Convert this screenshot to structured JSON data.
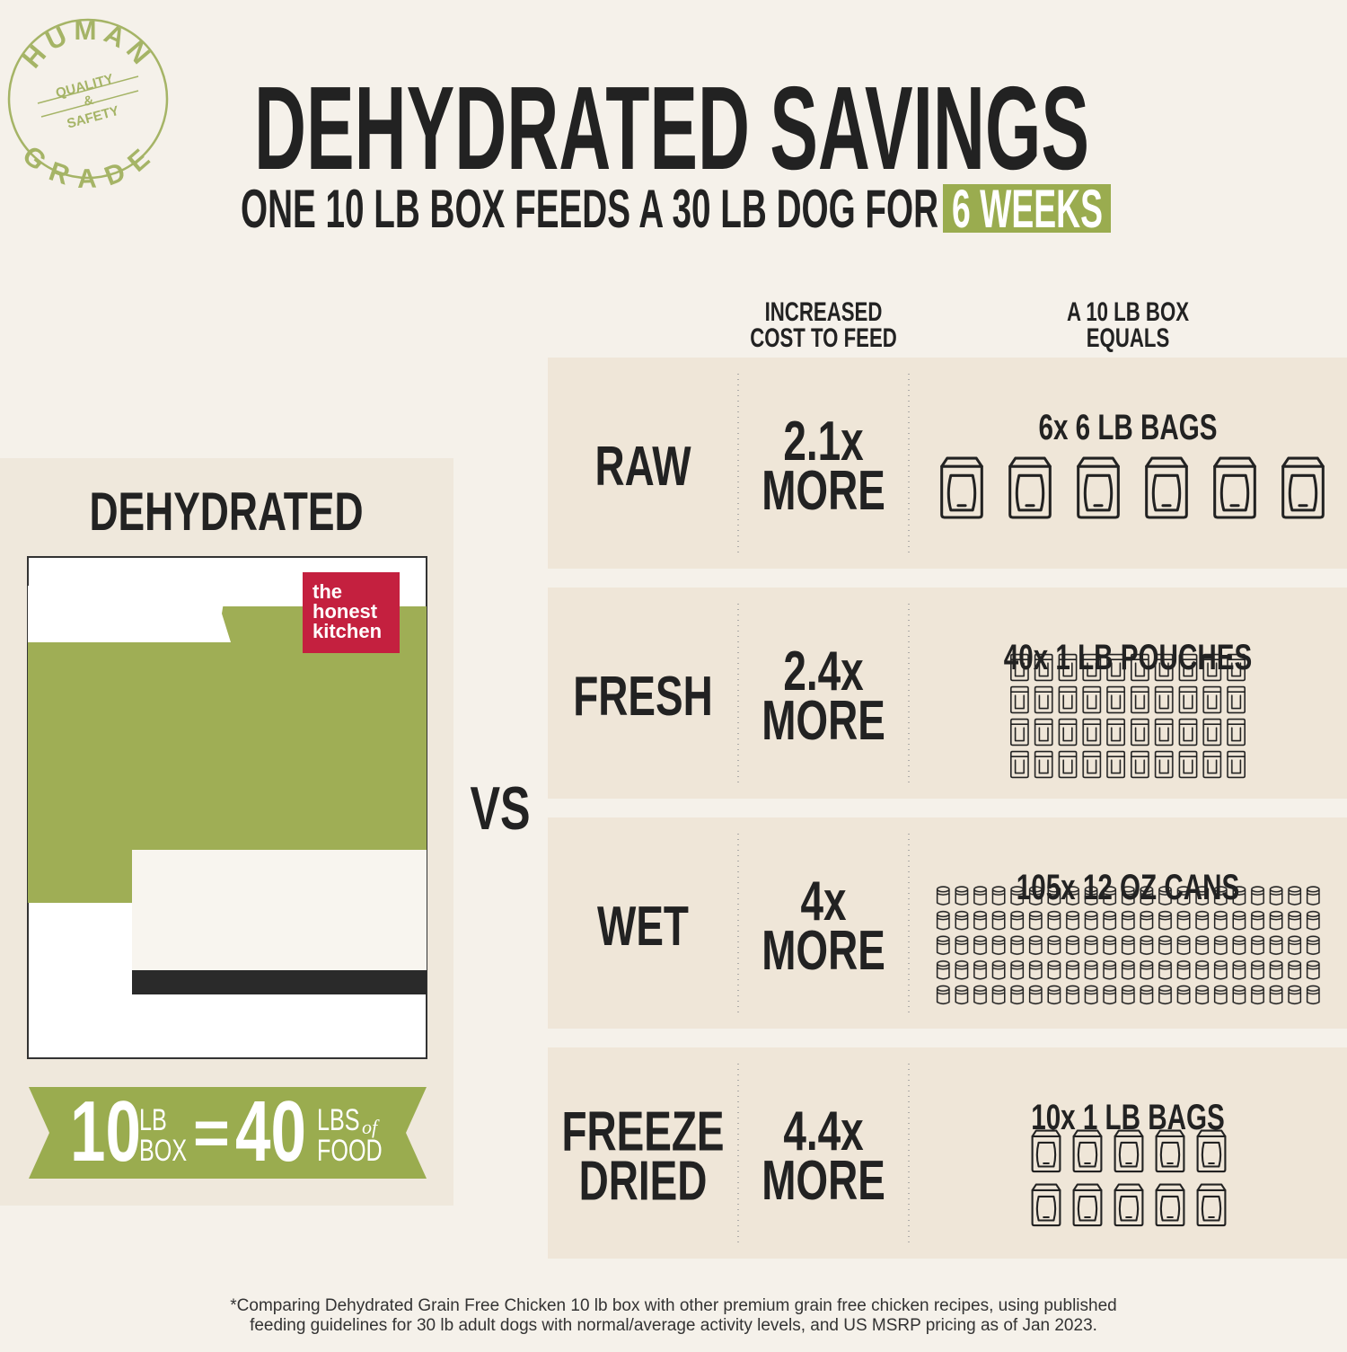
{
  "badge": {
    "top": "HUMAN",
    "lines": [
      "QUALITY",
      "&",
      "SAFETY"
    ],
    "bottom": "GRADE"
  },
  "header": {
    "title": "DEHYDRATED SAVINGS",
    "subtitle": "ONE 10 LB BOX FEEDS A 30 LB DOG FOR",
    "highlight": "6 WEEKS"
  },
  "columns": {
    "cost": [
      "INCREASED",
      "COST TO FEED"
    ],
    "equals": [
      "A 10 LB BOX",
      "EQUALS"
    ]
  },
  "dehydrated": {
    "label": "DEHYDRATED",
    "brand": [
      "the",
      "honest",
      "kitchen"
    ],
    "ribbon": {
      "box_weight": "10",
      "box_unit": [
        "LB",
        "BOX"
      ],
      "equals": "=",
      "food_weight": "40",
      "food_unit": [
        "LBS",
        "of",
        "FOOD"
      ]
    }
  },
  "vs": "VS",
  "rows": [
    {
      "label": [
        "RAW"
      ],
      "cost": [
        "2.1x",
        "MORE"
      ],
      "equals": "6x 6 LB BAGS"
    },
    {
      "label": [
        "FRESH"
      ],
      "cost": [
        "2.4x",
        "MORE"
      ],
      "equals": "40x 1 LB POUCHES"
    },
    {
      "label": [
        "WET"
      ],
      "cost": [
        "4x",
        "MORE"
      ],
      "equals": "105x 12 OZ CANS"
    },
    {
      "label": [
        "FREEZE",
        "DRIED"
      ],
      "cost": [
        "4.4x",
        "MORE"
      ],
      "equals": "10x 1 LB BAGS"
    }
  ],
  "footnote": [
    "*Comparing Dehydrated Grain Free Chicken 10 lb box with other premium grain free chicken recipes, using published",
    "feeding guidelines for 30 lb adult dogs with normal/average activity levels, and US MSRP pricing as of Jan 2023."
  ]
}
